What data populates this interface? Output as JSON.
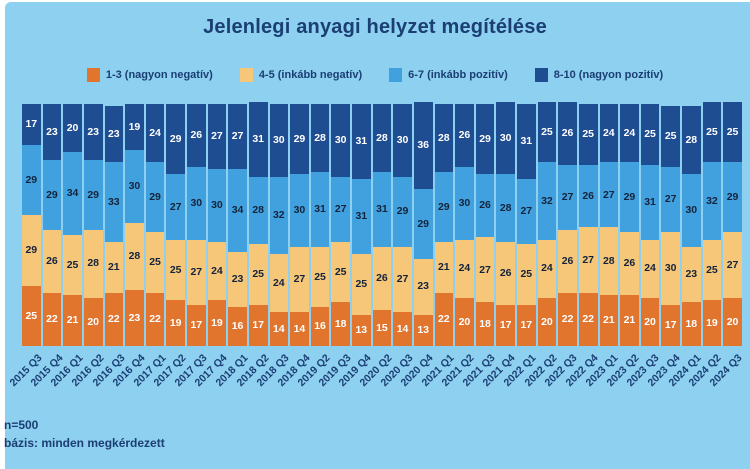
{
  "title": "Jelenlegi anyagi helyzet megítélése",
  "footer": {
    "sample": "n=500",
    "basis": "bázis: minden megkérdezett"
  },
  "colors": {
    "background": "#8dd0f0",
    "text_navy": "#1b3e73",
    "segment_label_dark": "#14233c",
    "segment_label_light": "#ffffff"
  },
  "chart_data": {
    "type": "bar",
    "stacked": true,
    "units": "percent",
    "ylim": [
      0,
      100
    ],
    "legend_position": "top",
    "grid": false,
    "title": "Jelenlegi anyagi helyzet megítélése",
    "categories": [
      "2015 Q3",
      "2015 Q4",
      "2016 Q1",
      "2016 Q2",
      "2016 Q3",
      "2016 Q4",
      "2017 Q1",
      "2017 Q2",
      "2017 Q3",
      "2017 Q4",
      "2018 Q1",
      "2018 Q2",
      "2018 Q3",
      "2018 Q4",
      "2019 Q2",
      "2019 Q3",
      "2019 Q4",
      "2020 Q2",
      "2020 Q3",
      "2020 Q4",
      "2021 Q1",
      "2021 Q2",
      "2021 Q3",
      "2021 Q4",
      "2022 Q1",
      "2022 Q2",
      "2022 Q3",
      "2022 Q4",
      "2023 Q1",
      "2023 Q2",
      "2023 Q3",
      "2023 Q4",
      "2024 Q1",
      "2024 Q2",
      "2024 Q3"
    ],
    "series": [
      {
        "name": "1-3 (nagyon negatív)",
        "color": "#e2752e",
        "label_color": "#ffffff",
        "values": [
          25,
          22,
          21,
          20,
          22,
          23,
          22,
          19,
          17,
          19,
          16,
          17,
          14,
          14,
          16,
          18,
          13,
          15,
          14,
          13,
          22,
          20,
          18,
          17,
          17,
          20,
          22,
          22,
          21,
          21,
          20,
          17,
          18,
          19,
          20
        ]
      },
      {
        "name": "4-5 (inkább negatív)",
        "color": "#f6c779",
        "label_color": "#14233c",
        "values": [
          29,
          26,
          25,
          28,
          21,
          28,
          25,
          25,
          27,
          24,
          23,
          25,
          24,
          27,
          25,
          25,
          25,
          26,
          27,
          23,
          21,
          24,
          27,
          26,
          25,
          24,
          26,
          27,
          28,
          26,
          24,
          30,
          23,
          25,
          27
        ]
      },
      {
        "name": "6-7 (inkább pozitív)",
        "color": "#41a1de",
        "label_color": "#14233c",
        "values": [
          29,
          29,
          34,
          29,
          33,
          30,
          29,
          27,
          30,
          30,
          34,
          28,
          32,
          30,
          31,
          27,
          31,
          31,
          29,
          29,
          29,
          30,
          26,
          28,
          27,
          32,
          27,
          26,
          27,
          29,
          31,
          27,
          30,
          32,
          29
        ]
      },
      {
        "name": "8-10 (nagyon pozitív)",
        "color": "#1f4d92",
        "label_color": "#ffffff",
        "values": [
          17,
          23,
          20,
          23,
          23,
          19,
          24,
          29,
          26,
          27,
          27,
          31,
          30,
          29,
          28,
          30,
          31,
          28,
          30,
          36,
          28,
          26,
          29,
          30,
          31,
          25,
          26,
          25,
          24,
          24,
          25,
          25,
          28,
          25,
          25
        ]
      }
    ]
  }
}
